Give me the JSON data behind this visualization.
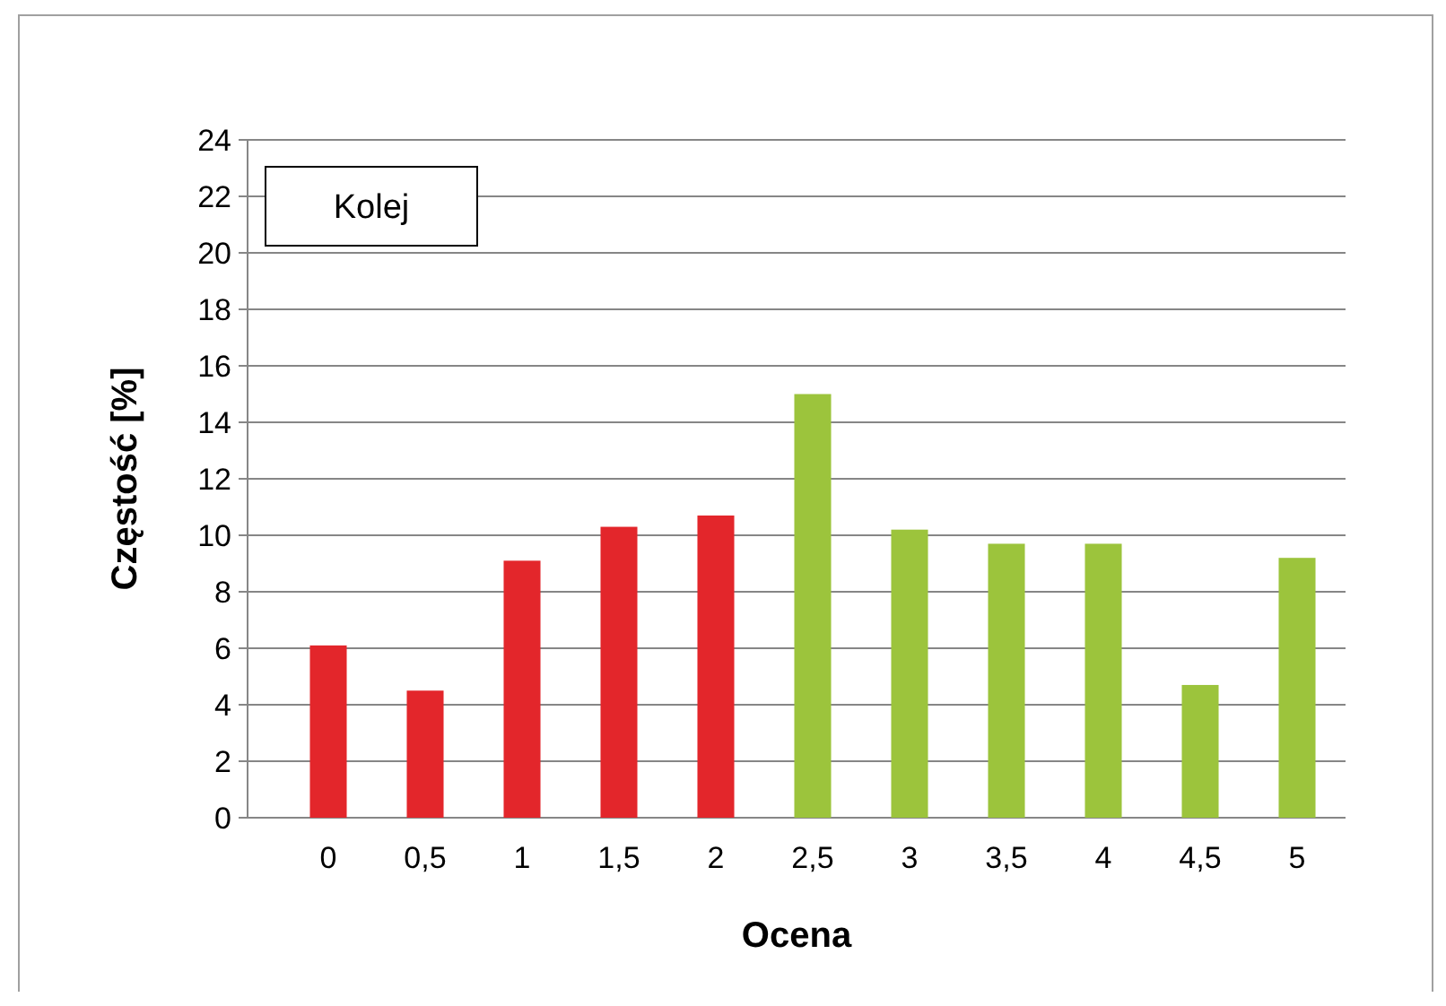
{
  "chart_data": {
    "type": "bar",
    "title": "Kolej",
    "xlabel": "Ocena",
    "ylabel": "Częstość [%]",
    "categories": [
      "0",
      "0,5",
      "1",
      "1,5",
      "2",
      "2,5",
      "3",
      "3,5",
      "4",
      "4,5",
      "5"
    ],
    "values": [
      6.1,
      4.5,
      9.1,
      10.3,
      10.7,
      15.0,
      10.2,
      9.7,
      9.7,
      4.7,
      9.2
    ],
    "colors": [
      "#e3262b",
      "#e3262b",
      "#e3262b",
      "#e3262b",
      "#e3262b",
      "#9cc43c",
      "#9cc43c",
      "#9cc43c",
      "#9cc43c",
      "#9cc43c",
      "#9cc43c"
    ],
    "ylim": [
      0,
      24
    ],
    "yticks": [
      0,
      2,
      4,
      6,
      8,
      10,
      12,
      14,
      16,
      18,
      20,
      22,
      24
    ],
    "grid": "y"
  }
}
